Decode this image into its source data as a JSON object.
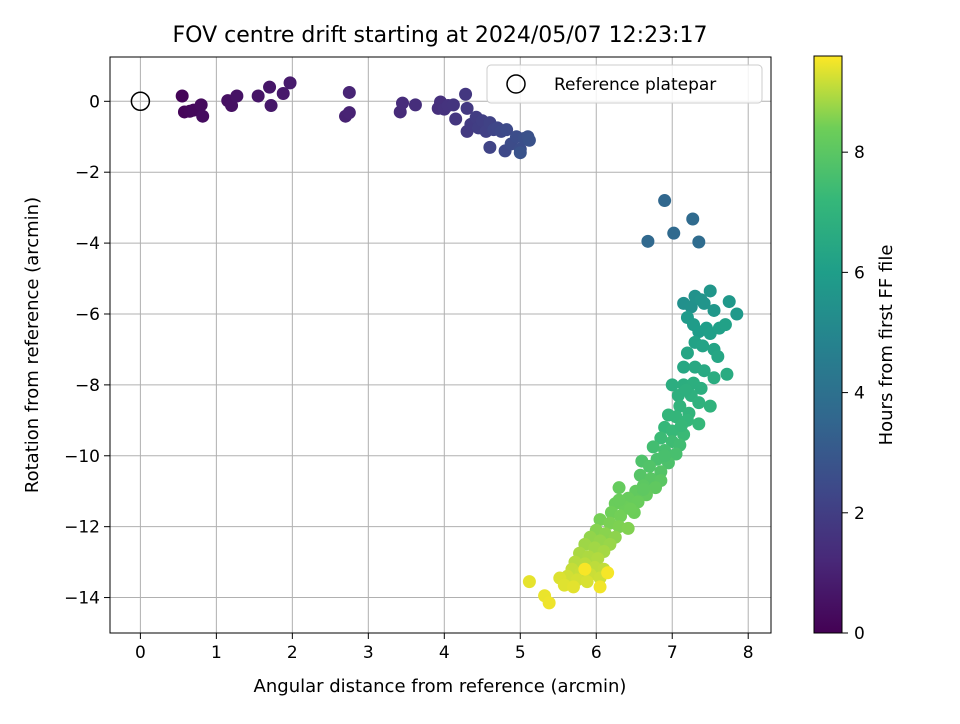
{
  "chart_data": {
    "type": "scatter",
    "title": "FOV centre drift starting at 2024/05/07 12:23:17",
    "xlabel": "Angular distance from reference (arcmin)",
    "ylabel": "Rotation from reference (arcmin)",
    "xlim": [
      -0.4,
      8.3
    ],
    "ylim": [
      -15,
      1.25
    ],
    "x_ticks": [
      "0",
      "1",
      "2",
      "3",
      "4",
      "5",
      "6",
      "7",
      "8"
    ],
    "y_ticks": [
      "0",
      "−2",
      "−4",
      "−6",
      "−8",
      "−10",
      "−12",
      "−14"
    ],
    "grid": true,
    "legend": {
      "position": "top-right",
      "entries": [
        "Reference platepar"
      ]
    },
    "reference_point": {
      "x": 0,
      "y": 0
    },
    "colorbar": {
      "label": "Hours from first FF file",
      "colormap": "viridis",
      "range": [
        0,
        9.6
      ],
      "ticks": [
        "0",
        "2",
        "4",
        "6",
        "8"
      ]
    },
    "series": [
      {
        "points": [
          {
            "x": 0.55,
            "y": 0.15,
            "t": 0.1
          },
          {
            "x": 0.58,
            "y": -0.3,
            "t": 0.15
          },
          {
            "x": 0.65,
            "y": -0.28,
            "t": 0.2
          },
          {
            "x": 0.7,
            "y": -0.25,
            "t": 0.25
          },
          {
            "x": 0.8,
            "y": -0.1,
            "t": 0.3
          },
          {
            "x": 0.82,
            "y": -0.42,
            "t": 0.35
          },
          {
            "x": 1.15,
            "y": 0.02,
            "t": 0.45
          },
          {
            "x": 1.2,
            "y": -0.12,
            "t": 0.5
          },
          {
            "x": 1.27,
            "y": 0.15,
            "t": 0.55
          },
          {
            "x": 1.55,
            "y": 0.15,
            "t": 0.6
          },
          {
            "x": 1.7,
            "y": 0.4,
            "t": 0.65
          },
          {
            "x": 1.72,
            "y": -0.12,
            "t": 0.7
          },
          {
            "x": 1.88,
            "y": 0.22,
            "t": 0.75
          },
          {
            "x": 1.97,
            "y": 0.52,
            "t": 0.8
          },
          {
            "x": 2.7,
            "y": -0.42,
            "t": 1.0
          },
          {
            "x": 2.75,
            "y": -0.32,
            "t": 1.05
          },
          {
            "x": 2.75,
            "y": 0.25,
            "t": 1.1
          },
          {
            "x": 3.42,
            "y": -0.3,
            "t": 1.3
          },
          {
            "x": 3.45,
            "y": -0.05,
            "t": 1.35
          },
          {
            "x": 3.62,
            "y": -0.1,
            "t": 1.4
          },
          {
            "x": 3.92,
            "y": -0.2,
            "t": 1.45
          },
          {
            "x": 3.95,
            "y": -0.02,
            "t": 1.5
          },
          {
            "x": 4.0,
            "y": -0.22,
            "t": 1.55
          },
          {
            "x": 4.05,
            "y": -0.12,
            "t": 1.6
          },
          {
            "x": 4.12,
            "y": -0.1,
            "t": 1.65
          },
          {
            "x": 4.15,
            "y": -0.5,
            "t": 1.7
          },
          {
            "x": 4.28,
            "y": 0.2,
            "t": 1.75
          },
          {
            "x": 4.3,
            "y": -0.2,
            "t": 1.8
          },
          {
            "x": 4.3,
            "y": -0.85,
            "t": 1.85
          },
          {
            "x": 4.35,
            "y": -0.65,
            "t": 1.9
          },
          {
            "x": 4.42,
            "y": -0.45,
            "t": 1.95
          },
          {
            "x": 4.45,
            "y": -0.75,
            "t": 2.0
          },
          {
            "x": 4.5,
            "y": -0.55,
            "t": 2.05
          },
          {
            "x": 4.55,
            "y": -0.85,
            "t": 2.1
          },
          {
            "x": 4.6,
            "y": -0.6,
            "t": 2.15
          },
          {
            "x": 4.6,
            "y": -1.3,
            "t": 2.2
          },
          {
            "x": 4.65,
            "y": -0.8,
            "t": 2.25
          },
          {
            "x": 4.7,
            "y": -0.75,
            "t": 2.3
          },
          {
            "x": 4.75,
            "y": -0.85,
            "t": 2.35
          },
          {
            "x": 4.8,
            "y": -1.4,
            "t": 2.4
          },
          {
            "x": 4.82,
            "y": -0.8,
            "t": 2.45
          },
          {
            "x": 4.88,
            "y": -1.2,
            "t": 2.5
          },
          {
            "x": 4.95,
            "y": -1.0,
            "t": 2.55
          },
          {
            "x": 5.0,
            "y": -1.35,
            "t": 2.6
          },
          {
            "x": 5.05,
            "y": -1.05,
            "t": 2.65
          },
          {
            "x": 5.1,
            "y": -1.0,
            "t": 2.7
          },
          {
            "x": 5.12,
            "y": -1.1,
            "t": 2.75
          },
          {
            "x": 5.0,
            "y": -1.45,
            "t": 2.8
          },
          {
            "x": 6.9,
            "y": -2.8,
            "t": 3.6
          },
          {
            "x": 6.68,
            "y": -3.95,
            "t": 3.65
          },
          {
            "x": 7.02,
            "y": -3.72,
            "t": 3.7
          },
          {
            "x": 7.27,
            "y": -3.32,
            "t": 3.75
          },
          {
            "x": 7.35,
            "y": -3.97,
            "t": 3.8
          },
          {
            "x": 7.15,
            "y": -5.7,
            "t": 5.4
          },
          {
            "x": 7.25,
            "y": -5.8,
            "t": 5.45
          },
          {
            "x": 7.3,
            "y": -5.5,
            "t": 5.5
          },
          {
            "x": 7.38,
            "y": -5.6,
            "t": 5.55
          },
          {
            "x": 7.42,
            "y": -5.7,
            "t": 5.6
          },
          {
            "x": 7.5,
            "y": -5.35,
            "t": 5.65
          },
          {
            "x": 7.55,
            "y": -5.9,
            "t": 5.7
          },
          {
            "x": 7.75,
            "y": -5.65,
            "t": 5.75
          },
          {
            "x": 7.85,
            "y": -6.0,
            "t": 5.8
          },
          {
            "x": 7.2,
            "y": -6.1,
            "t": 5.85
          },
          {
            "x": 7.28,
            "y": -6.3,
            "t": 5.9
          },
          {
            "x": 7.35,
            "y": -6.5,
            "t": 5.95
          },
          {
            "x": 7.45,
            "y": -6.4,
            "t": 6.0
          },
          {
            "x": 7.5,
            "y": -6.55,
            "t": 6.05
          },
          {
            "x": 7.62,
            "y": -6.4,
            "t": 6.1
          },
          {
            "x": 7.7,
            "y": -6.3,
            "t": 6.15
          },
          {
            "x": 7.3,
            "y": -6.8,
            "t": 6.2
          },
          {
            "x": 7.4,
            "y": -6.9,
            "t": 6.25
          },
          {
            "x": 7.55,
            "y": -7.0,
            "t": 6.3
          },
          {
            "x": 7.2,
            "y": -7.1,
            "t": 6.35
          },
          {
            "x": 7.6,
            "y": -7.2,
            "t": 6.4
          },
          {
            "x": 7.15,
            "y": -7.5,
            "t": 6.45
          },
          {
            "x": 7.3,
            "y": -7.5,
            "t": 6.5
          },
          {
            "x": 7.42,
            "y": -7.6,
            "t": 6.55
          },
          {
            "x": 7.72,
            "y": -7.7,
            "t": 6.6
          },
          {
            "x": 7.55,
            "y": -7.8,
            "t": 6.65
          },
          {
            "x": 7.0,
            "y": -8.0,
            "t": 6.7
          },
          {
            "x": 7.15,
            "y": -8.0,
            "t": 6.72
          },
          {
            "x": 7.28,
            "y": -7.95,
            "t": 6.75
          },
          {
            "x": 7.38,
            "y": -8.1,
            "t": 6.78
          },
          {
            "x": 7.08,
            "y": -8.3,
            "t": 6.8
          },
          {
            "x": 7.25,
            "y": -8.3,
            "t": 6.85
          },
          {
            "x": 7.35,
            "y": -8.5,
            "t": 6.9
          },
          {
            "x": 7.5,
            "y": -8.6,
            "t": 6.95
          },
          {
            "x": 7.1,
            "y": -8.6,
            "t": 7.0
          },
          {
            "x": 7.22,
            "y": -8.8,
            "t": 7.05
          },
          {
            "x": 6.95,
            "y": -8.85,
            "t": 7.1
          },
          {
            "x": 7.05,
            "y": -8.9,
            "t": 7.12
          },
          {
            "x": 7.2,
            "y": -9.0,
            "t": 7.15
          },
          {
            "x": 7.35,
            "y": -9.1,
            "t": 7.18
          },
          {
            "x": 6.9,
            "y": -9.2,
            "t": 7.2
          },
          {
            "x": 7.0,
            "y": -9.3,
            "t": 7.25
          },
          {
            "x": 7.15,
            "y": -9.4,
            "t": 7.3
          },
          {
            "x": 6.85,
            "y": -9.5,
            "t": 7.35
          },
          {
            "x": 7.0,
            "y": -9.6,
            "t": 7.4
          },
          {
            "x": 7.1,
            "y": -9.7,
            "t": 7.45
          },
          {
            "x": 6.75,
            "y": -9.75,
            "t": 7.5
          },
          {
            "x": 6.9,
            "y": -9.85,
            "t": 7.55
          },
          {
            "x": 7.05,
            "y": -9.95,
            "t": 7.6
          },
          {
            "x": 6.8,
            "y": -10.1,
            "t": 7.65
          },
          {
            "x": 6.95,
            "y": -10.2,
            "t": 7.7
          },
          {
            "x": 6.6,
            "y": -10.15,
            "t": 7.75
          },
          {
            "x": 6.7,
            "y": -10.3,
            "t": 7.8
          },
          {
            "x": 6.85,
            "y": -10.45,
            "t": 7.85
          },
          {
            "x": 6.58,
            "y": -10.55,
            "t": 7.9
          },
          {
            "x": 6.72,
            "y": -10.65,
            "t": 7.95
          },
          {
            "x": 6.85,
            "y": -10.7,
            "t": 8.0
          },
          {
            "x": 6.62,
            "y": -10.85,
            "t": 8.05
          },
          {
            "x": 6.78,
            "y": -10.9,
            "t": 8.1
          },
          {
            "x": 6.52,
            "y": -11.0,
            "t": 8.15
          },
          {
            "x": 6.66,
            "y": -11.1,
            "t": 8.2
          },
          {
            "x": 6.3,
            "y": -10.9,
            "t": 8.22
          },
          {
            "x": 6.42,
            "y": -11.2,
            "t": 8.25
          },
          {
            "x": 6.55,
            "y": -11.3,
            "t": 8.28
          },
          {
            "x": 6.25,
            "y": -11.35,
            "t": 8.3
          },
          {
            "x": 6.38,
            "y": -11.45,
            "t": 8.33
          },
          {
            "x": 6.5,
            "y": -11.6,
            "t": 8.36
          },
          {
            "x": 6.2,
            "y": -11.6,
            "t": 8.4
          },
          {
            "x": 6.32,
            "y": -11.7,
            "t": 8.43
          },
          {
            "x": 6.05,
            "y": -11.8,
            "t": 8.46
          },
          {
            "x": 6.18,
            "y": -11.9,
            "t": 8.5
          },
          {
            "x": 6.3,
            "y": -12.0,
            "t": 8.53
          },
          {
            "x": 6.42,
            "y": -12.05,
            "t": 8.56
          },
          {
            "x": 6.0,
            "y": -12.1,
            "t": 8.6
          },
          {
            "x": 6.12,
            "y": -12.2,
            "t": 8.63
          },
          {
            "x": 6.25,
            "y": -12.3,
            "t": 8.66
          },
          {
            "x": 5.92,
            "y": -12.3,
            "t": 8.7
          },
          {
            "x": 6.05,
            "y": -12.4,
            "t": 8.73
          },
          {
            "x": 6.18,
            "y": -12.5,
            "t": 8.76
          },
          {
            "x": 5.85,
            "y": -12.5,
            "t": 8.8
          },
          {
            "x": 5.98,
            "y": -12.6,
            "t": 8.83
          },
          {
            "x": 6.1,
            "y": -12.7,
            "t": 8.86
          },
          {
            "x": 5.78,
            "y": -12.75,
            "t": 8.9
          },
          {
            "x": 5.9,
            "y": -12.85,
            "t": 8.93
          },
          {
            "x": 6.02,
            "y": -12.9,
            "t": 8.96
          },
          {
            "x": 5.72,
            "y": -13.0,
            "t": 9.0
          },
          {
            "x": 5.85,
            "y": -13.05,
            "t": 9.03
          },
          {
            "x": 5.98,
            "y": -13.15,
            "t": 9.06
          },
          {
            "x": 6.1,
            "y": -13.2,
            "t": 9.09
          },
          {
            "x": 5.68,
            "y": -13.2,
            "t": 9.12
          },
          {
            "x": 5.8,
            "y": -13.3,
            "t": 9.15
          },
          {
            "x": 5.92,
            "y": -13.35,
            "t": 9.18
          },
          {
            "x": 6.05,
            "y": -13.45,
            "t": 9.2
          },
          {
            "x": 5.62,
            "y": -13.4,
            "t": 9.23
          },
          {
            "x": 5.75,
            "y": -13.5,
            "t": 9.26
          },
          {
            "x": 5.88,
            "y": -13.55,
            "t": 9.29
          },
          {
            "x": 5.52,
            "y": -13.45,
            "t": 9.32
          },
          {
            "x": 5.58,
            "y": -13.65,
            "t": 9.35
          },
          {
            "x": 5.7,
            "y": -13.7,
            "t": 9.38
          },
          {
            "x": 5.12,
            "y": -13.55,
            "t": 9.41
          },
          {
            "x": 5.32,
            "y": -13.95,
            "t": 9.44
          },
          {
            "x": 5.38,
            "y": -14.15,
            "t": 9.47
          },
          {
            "x": 6.05,
            "y": -13.7,
            "t": 9.5
          },
          {
            "x": 6.15,
            "y": -13.3,
            "t": 9.53
          },
          {
            "x": 5.85,
            "y": -13.2,
            "t": 9.56
          },
          {
            "x": 6.3,
            "y": -11.25,
            "t": 8.3
          },
          {
            "x": 6.45,
            "y": -11.5,
            "t": 8.38
          },
          {
            "x": 6.62,
            "y": -10.95,
            "t": 8.08
          },
          {
            "x": 6.9,
            "y": -10.0,
            "t": 7.62
          },
          {
            "x": 7.12,
            "y": -9.15,
            "t": 7.22
          },
          {
            "x": 7.18,
            "y": -8.15,
            "t": 6.82
          }
        ]
      }
    ]
  }
}
